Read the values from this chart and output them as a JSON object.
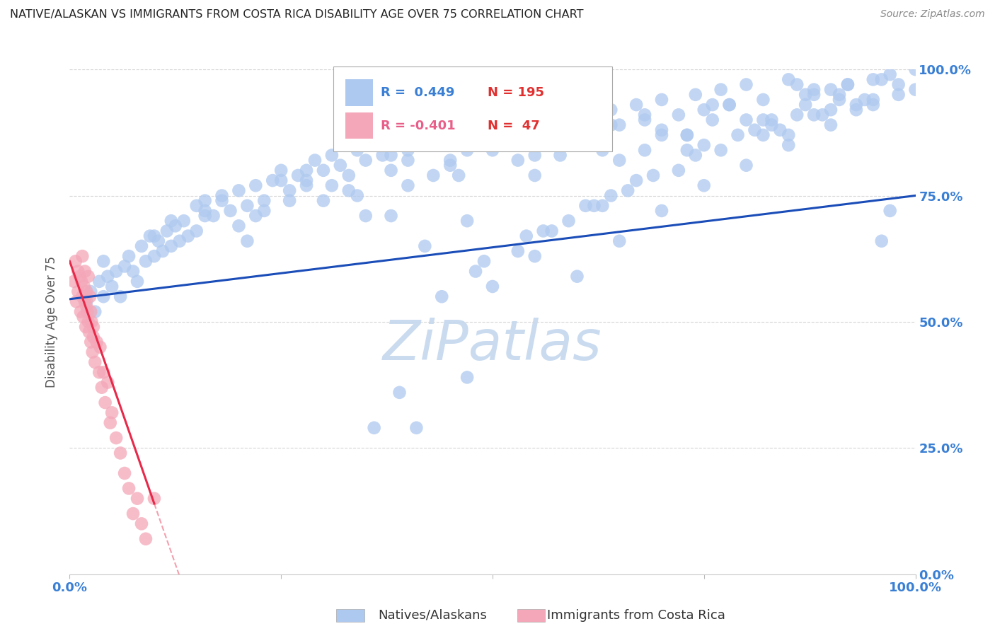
{
  "title": "NATIVE/ALASKAN VS IMMIGRANTS FROM COSTA RICA DISABILITY AGE OVER 75 CORRELATION CHART",
  "source": "Source: ZipAtlas.com",
  "ylabel": "Disability Age Over 75",
  "ytick_labels": [
    "0.0%",
    "25.0%",
    "50.0%",
    "75.0%",
    "100.0%"
  ],
  "ytick_values": [
    0.0,
    0.25,
    0.5,
    0.75,
    1.0
  ],
  "xtick_left": "0.0%",
  "xtick_right": "100.0%",
  "xlim": [
    0.0,
    1.0
  ],
  "ylim": [
    0.0,
    1.0
  ],
  "blue_R": 0.449,
  "blue_N": 195,
  "pink_R": -0.401,
  "pink_N": 47,
  "legend_label_blue": "Natives/Alaskans",
  "legend_label_pink": "Immigrants from Costa Rica",
  "watermark": "ZiPatlas",
  "blue_dot_color": "#aec9ef",
  "blue_line_color": "#1b4db8",
  "pink_dot_color": "#f4a7b8",
  "pink_line_color": "#e8294a",
  "pink_dash_color": "#e8294a",
  "title_color": "#222222",
  "axis_tick_color": "#3a7fd4",
  "grid_color": "#cccccc",
  "watermark_color": "#c5d8ee",
  "source_color": "#888888",
  "ylabel_color": "#555555",
  "legend_R_blue_color": "#3a7fd4",
  "legend_R_pink_color": "#e8608a",
  "legend_N_blue_color": "#e03030",
  "legend_N_pink_color": "#e03030",
  "blue_scatter_x": [
    0.02,
    0.025,
    0.03,
    0.035,
    0.04,
    0.04,
    0.045,
    0.05,
    0.055,
    0.06,
    0.065,
    0.07,
    0.075,
    0.08,
    0.085,
    0.09,
    0.095,
    0.1,
    0.105,
    0.11,
    0.115,
    0.12,
    0.125,
    0.13,
    0.135,
    0.14,
    0.15,
    0.16,
    0.17,
    0.18,
    0.19,
    0.2,
    0.21,
    0.22,
    0.23,
    0.24,
    0.25,
    0.26,
    0.27,
    0.28,
    0.29,
    0.3,
    0.31,
    0.32,
    0.33,
    0.34,
    0.35,
    0.36,
    0.37,
    0.38,
    0.4,
    0.42,
    0.44,
    0.45,
    0.46,
    0.47,
    0.48,
    0.5,
    0.52,
    0.54,
    0.55,
    0.57,
    0.58,
    0.6,
    0.62,
    0.63,
    0.64,
    0.65,
    0.67,
    0.68,
    0.7,
    0.72,
    0.73,
    0.74,
    0.75,
    0.77,
    0.78,
    0.8,
    0.82,
    0.83,
    0.85,
    0.87,
    0.88,
    0.9,
    0.92,
    0.93,
    0.95,
    0.97,
    0.98,
    1.0,
    0.15,
    0.2,
    0.25,
    0.3,
    0.35,
    0.4,
    0.45,
    0.5,
    0.55,
    0.6,
    0.65,
    0.7,
    0.75,
    0.8,
    0.85,
    0.9,
    0.95,
    1.0,
    0.12,
    0.18,
    0.23,
    0.28,
    0.33,
    0.38,
    0.43,
    0.48,
    0.53,
    0.58,
    0.63,
    0.68,
    0.73,
    0.78,
    0.83,
    0.88,
    0.93,
    0.98,
    0.1,
    0.16,
    0.22,
    0.28,
    0.34,
    0.4,
    0.46,
    0.52,
    0.58,
    0.64,
    0.7,
    0.76,
    0.82,
    0.88,
    0.94,
    0.42,
    0.47,
    0.56,
    0.61,
    0.66,
    0.72,
    0.77,
    0.84,
    0.89,
    0.5,
    0.55,
    0.6,
    0.65,
    0.7,
    0.75,
    0.8,
    0.85,
    0.9,
    0.95,
    0.48,
    0.53,
    0.59,
    0.64,
    0.69,
    0.74,
    0.79,
    0.86,
    0.91,
    0.96,
    0.44,
    0.49,
    0.54,
    0.62,
    0.67,
    0.73,
    0.81,
    0.87,
    0.92,
    0.97,
    0.57,
    0.63,
    0.68,
    0.76,
    0.82,
    0.86,
    0.91,
    0.96,
    0.38,
    0.41,
    0.36,
    0.39,
    0.47,
    0.16,
    0.21,
    0.26,
    0.31
  ],
  "blue_scatter_y": [
    0.54,
    0.56,
    0.52,
    0.58,
    0.55,
    0.62,
    0.59,
    0.57,
    0.6,
    0.55,
    0.61,
    0.63,
    0.6,
    0.58,
    0.65,
    0.62,
    0.67,
    0.63,
    0.66,
    0.64,
    0.68,
    0.65,
    0.69,
    0.66,
    0.7,
    0.67,
    0.68,
    0.72,
    0.71,
    0.74,
    0.72,
    0.76,
    0.73,
    0.77,
    0.74,
    0.78,
    0.8,
    0.76,
    0.79,
    0.77,
    0.82,
    0.8,
    0.83,
    0.81,
    0.79,
    0.84,
    0.82,
    0.85,
    0.83,
    0.8,
    0.84,
    0.87,
    0.85,
    0.82,
    0.88,
    0.84,
    0.86,
    0.89,
    0.86,
    0.88,
    0.83,
    0.9,
    0.87,
    0.91,
    0.88,
    0.85,
    0.92,
    0.89,
    0.93,
    0.9,
    0.94,
    0.91,
    0.87,
    0.95,
    0.92,
    0.96,
    0.93,
    0.97,
    0.94,
    0.9,
    0.98,
    0.95,
    0.91,
    0.96,
    0.97,
    0.93,
    0.98,
    0.99,
    0.95,
    1.0,
    0.73,
    0.69,
    0.78,
    0.74,
    0.71,
    0.77,
    0.81,
    0.84,
    0.79,
    0.86,
    0.82,
    0.88,
    0.85,
    0.9,
    0.87,
    0.92,
    0.94,
    0.96,
    0.7,
    0.75,
    0.72,
    0.8,
    0.76,
    0.83,
    0.79,
    0.85,
    0.82,
    0.88,
    0.84,
    0.91,
    0.87,
    0.93,
    0.89,
    0.95,
    0.92,
    0.97,
    0.67,
    0.74,
    0.71,
    0.78,
    0.75,
    0.82,
    0.79,
    0.86,
    0.83,
    0.89,
    0.87,
    0.93,
    0.9,
    0.96,
    0.94,
    0.65,
    0.7,
    0.68,
    0.73,
    0.76,
    0.8,
    0.84,
    0.88,
    0.91,
    0.57,
    0.63,
    0.59,
    0.66,
    0.72,
    0.77,
    0.81,
    0.85,
    0.89,
    0.93,
    0.6,
    0.64,
    0.7,
    0.75,
    0.79,
    0.83,
    0.87,
    0.91,
    0.95,
    0.98,
    0.55,
    0.62,
    0.67,
    0.73,
    0.78,
    0.84,
    0.88,
    0.93,
    0.97,
    0.72,
    0.68,
    0.73,
    0.84,
    0.9,
    0.87,
    0.97,
    0.94,
    0.66,
    0.71,
    0.29,
    0.29,
    0.36,
    0.39,
    0.71,
    0.66,
    0.74,
    0.77
  ],
  "pink_scatter_x": [
    0.005,
    0.007,
    0.008,
    0.01,
    0.01,
    0.012,
    0.013,
    0.014,
    0.015,
    0.015,
    0.016,
    0.017,
    0.018,
    0.018,
    0.019,
    0.02,
    0.02,
    0.021,
    0.022,
    0.022,
    0.023,
    0.024,
    0.025,
    0.025,
    0.026,
    0.027,
    0.028,
    0.028,
    0.03,
    0.032,
    0.035,
    0.036,
    0.038,
    0.04,
    0.042,
    0.045,
    0.048,
    0.05,
    0.055,
    0.06,
    0.065,
    0.07,
    0.075,
    0.08,
    0.085,
    0.09,
    0.1
  ],
  "pink_scatter_y": [
    0.58,
    0.62,
    0.54,
    0.6,
    0.56,
    0.59,
    0.52,
    0.58,
    0.55,
    0.63,
    0.51,
    0.57,
    0.54,
    0.6,
    0.49,
    0.56,
    0.53,
    0.52,
    0.5,
    0.59,
    0.48,
    0.55,
    0.46,
    0.52,
    0.5,
    0.44,
    0.49,
    0.47,
    0.42,
    0.46,
    0.4,
    0.45,
    0.37,
    0.4,
    0.34,
    0.38,
    0.3,
    0.32,
    0.27,
    0.24,
    0.2,
    0.17,
    0.12,
    0.15,
    0.1,
    0.07,
    0.15
  ]
}
